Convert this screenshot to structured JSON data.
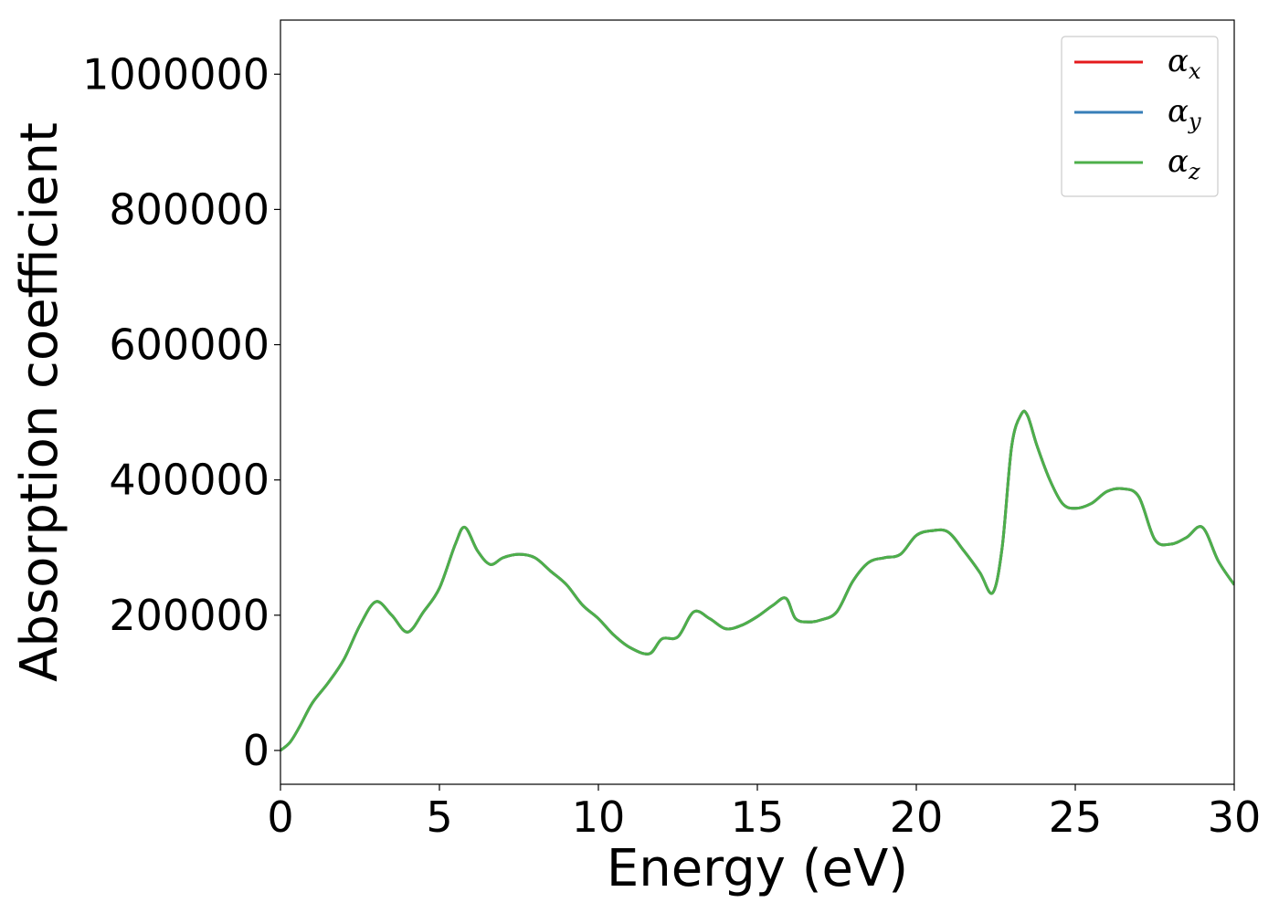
{
  "chart_data": {
    "type": "line",
    "title": "",
    "xlabel": "Energy (eV)",
    "ylabel": "Absorption coefficient",
    "xlim": [
      0,
      30
    ],
    "ylim": [
      -50000,
      1080000
    ],
    "xticks": [
      0,
      5,
      10,
      15,
      20,
      25,
      30
    ],
    "yticks": [
      0,
      200000,
      400000,
      600000,
      800000,
      1000000
    ],
    "xtick_labels": [
      "0",
      "5",
      "10",
      "15",
      "20",
      "25",
      "30"
    ],
    "ytick_labels": [
      "0",
      "200000",
      "400000",
      "600000",
      "800000",
      "1000000"
    ],
    "grid": false,
    "legend_position": "top-right",
    "x": [
      0,
      0.3,
      0.6,
      1.0,
      1.5,
      2.0,
      2.5,
      3.0,
      3.5,
      4.0,
      4.5,
      5.0,
      5.5,
      5.8,
      6.2,
      6.6,
      7.0,
      7.5,
      8.0,
      8.5,
      9.0,
      9.5,
      10.0,
      10.5,
      11.0,
      11.6,
      12.0,
      12.5,
      13.0,
      13.5,
      14.0,
      14.5,
      15.0,
      15.5,
      15.9,
      16.2,
      16.6,
      17.0,
      17.5,
      18.0,
      18.5,
      19.0,
      19.5,
      20.0,
      20.5,
      21.0,
      21.5,
      22.0,
      22.4,
      22.7,
      23.0,
      23.3,
      23.5,
      23.8,
      24.2,
      24.6,
      25.0,
      25.5,
      26.0,
      26.5,
      27.0,
      27.5,
      28.0,
      28.5,
      29.0,
      29.5,
      30.0
    ],
    "series": [
      {
        "name": "αx",
        "label_base": "α",
        "label_sub": "x",
        "color": "#e41a1c",
        "values": [
          0,
          12000,
          35000,
          70000,
          100000,
          135000,
          185000,
          220000,
          200000,
          175000,
          205000,
          240000,
          305000,
          330000,
          295000,
          275000,
          285000,
          290000,
          285000,
          265000,
          245000,
          215000,
          195000,
          170000,
          152000,
          143000,
          165000,
          168000,
          205000,
          195000,
          180000,
          185000,
          198000,
          215000,
          225000,
          195000,
          190000,
          193000,
          205000,
          250000,
          278000,
          285000,
          290000,
          318000,
          325000,
          323000,
          295000,
          263000,
          233000,
          300000,
          450000,
          497000,
          495000,
          450000,
          400000,
          365000,
          358000,
          365000,
          383000,
          387000,
          375000,
          312000,
          305000,
          315000,
          330000,
          280000,
          245000
        ]
      },
      {
        "name": "αy",
        "label_base": "α",
        "label_sub": "y",
        "color": "#377eb8",
        "values": [
          0,
          12000,
          35000,
          70000,
          100000,
          135000,
          185000,
          220000,
          200000,
          175000,
          205000,
          240000,
          305000,
          330000,
          295000,
          275000,
          285000,
          290000,
          285000,
          265000,
          245000,
          215000,
          195000,
          170000,
          152000,
          143000,
          165000,
          168000,
          205000,
          195000,
          180000,
          185000,
          198000,
          215000,
          225000,
          195000,
          190000,
          193000,
          205000,
          250000,
          278000,
          285000,
          290000,
          318000,
          325000,
          323000,
          295000,
          263000,
          233000,
          300000,
          450000,
          497000,
          495000,
          450000,
          400000,
          365000,
          358000,
          365000,
          383000,
          387000,
          375000,
          312000,
          305000,
          315000,
          330000,
          280000,
          245000
        ]
      },
      {
        "name": "αz",
        "label_base": "α",
        "label_sub": "z",
        "color": "#4daf4a",
        "values": [
          0,
          12000,
          35000,
          70000,
          100000,
          135000,
          185000,
          220000,
          200000,
          175000,
          205000,
          240000,
          305000,
          330000,
          295000,
          275000,
          285000,
          290000,
          285000,
          265000,
          245000,
          215000,
          195000,
          170000,
          152000,
          143000,
          165000,
          168000,
          205000,
          195000,
          180000,
          185000,
          198000,
          215000,
          225000,
          195000,
          190000,
          193000,
          205000,
          250000,
          278000,
          285000,
          290000,
          318000,
          325000,
          323000,
          295000,
          263000,
          233000,
          300000,
          450000,
          497000,
          495000,
          450000,
          400000,
          365000,
          358000,
          365000,
          383000,
          387000,
          375000,
          312000,
          305000,
          315000,
          330000,
          280000,
          245000
        ]
      }
    ]
  }
}
